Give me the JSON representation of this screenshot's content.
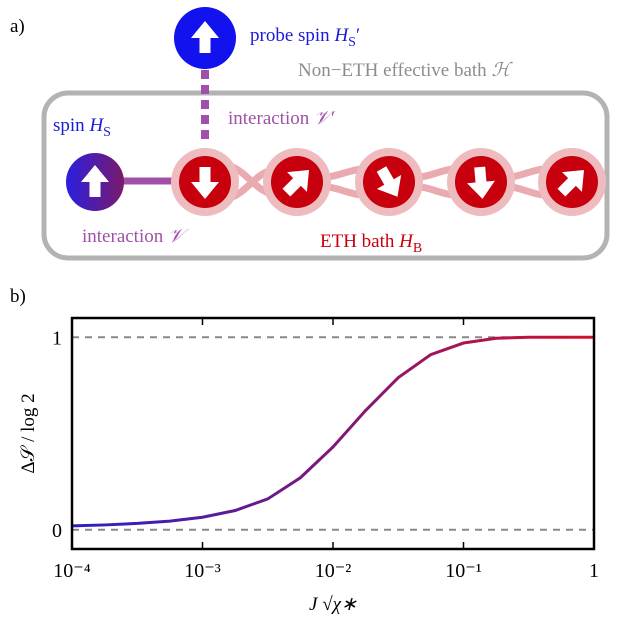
{
  "diagram": {
    "panel_label": "a)",
    "probe_spin": [
      "probe spin",
      "H",
      "S",
      "′"
    ],
    "bath": [
      "Non−ETH effective bath",
      "ℋ"
    ],
    "interaction_probe": [
      "interaction",
      "𝒱′"
    ],
    "spin": [
      "spin",
      "H",
      "S"
    ],
    "interaction_spin": [
      "interaction",
      "𝒱"
    ],
    "eth_bath": [
      "ETH bath",
      "H",
      "B"
    ]
  },
  "chart_data": {
    "type": "line",
    "panel_label": "b)",
    "xlabel": "J √χ∗",
    "ylabel": "Δ𝒮 / log 2",
    "xscale": "log",
    "x": [
      0.0001,
      0.000178,
      0.000316,
      0.000562,
      0.001,
      0.00178,
      0.00316,
      0.00562,
      0.01,
      0.0178,
      0.0316,
      0.0562,
      0.1,
      0.178,
      0.316,
      0.562,
      1
    ],
    "series": [
      {
        "colors": [
          "#2a1fc8",
          "#d4102a"
        ],
        "values": [
          0.02,
          0.025,
          0.033,
          0.045,
          0.065,
          0.1,
          0.16,
          0.27,
          0.43,
          0.62,
          0.79,
          0.91,
          0.97,
          0.995,
          1.0,
          1.0,
          1.0
        ]
      }
    ],
    "xlim": [
      0.0001,
      1
    ],
    "ylim": [
      -0.1,
      1.1
    ],
    "xticks": [
      {
        "value": 0.0001,
        "label": "10⁻⁴"
      },
      {
        "value": 0.001,
        "label": "10⁻³"
      },
      {
        "value": 0.01,
        "label": "10⁻²"
      },
      {
        "value": 0.1,
        "label": "10⁻¹"
      },
      1
    ],
    "yticks": [
      0,
      1
    ],
    "grid": "dashed"
  }
}
